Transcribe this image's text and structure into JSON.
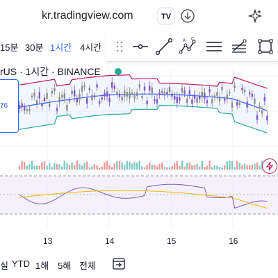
{
  "browser": {
    "url": "kr.tradingview.com"
  },
  "intervals": [
    {
      "label": "15분",
      "active": false
    },
    {
      "label": "30분",
      "active": false
    },
    {
      "label": "1시간",
      "active": true
    },
    {
      "label": "4시간",
      "active": false
    }
  ],
  "symbol": {
    "title": "rUS · 1시간 · BINANCE"
  },
  "price_tag": {
    "value": "76"
  },
  "x_axis": {
    "labels": [
      "13",
      "14",
      "15",
      "16"
    ]
  },
  "range_bar": {
    "items": [
      "실",
      "YTD",
      "1해",
      "5해",
      "전체"
    ]
  },
  "colors": {
    "accent": "#2962ff",
    "up": "#22ab94",
    "down": "#f23645",
    "bb_upper": "#c2185b",
    "bb_basis": "#2962ff",
    "bb_lower": "#22ab94",
    "rsi": "#7e57c2",
    "rsi_ma": "#f5b400"
  },
  "icons": [
    "tradingview-logo-icon",
    "download-icon",
    "sparkle-icon",
    "drag-handle-icon",
    "horizontal-ray-icon",
    "trend-line-icon",
    "pattern-abcd-icon",
    "parallel-lines-icon",
    "fib-icon",
    "rectangle-icon",
    "flash-icon",
    "calendar-range-icon"
  ],
  "chart_data": {
    "type": "candlestick",
    "indicators": [
      "Bollinger Bands",
      "Volume",
      "RSI"
    ],
    "x_labels": [
      "13",
      "14",
      "15",
      "16"
    ],
    "grid": true
  }
}
